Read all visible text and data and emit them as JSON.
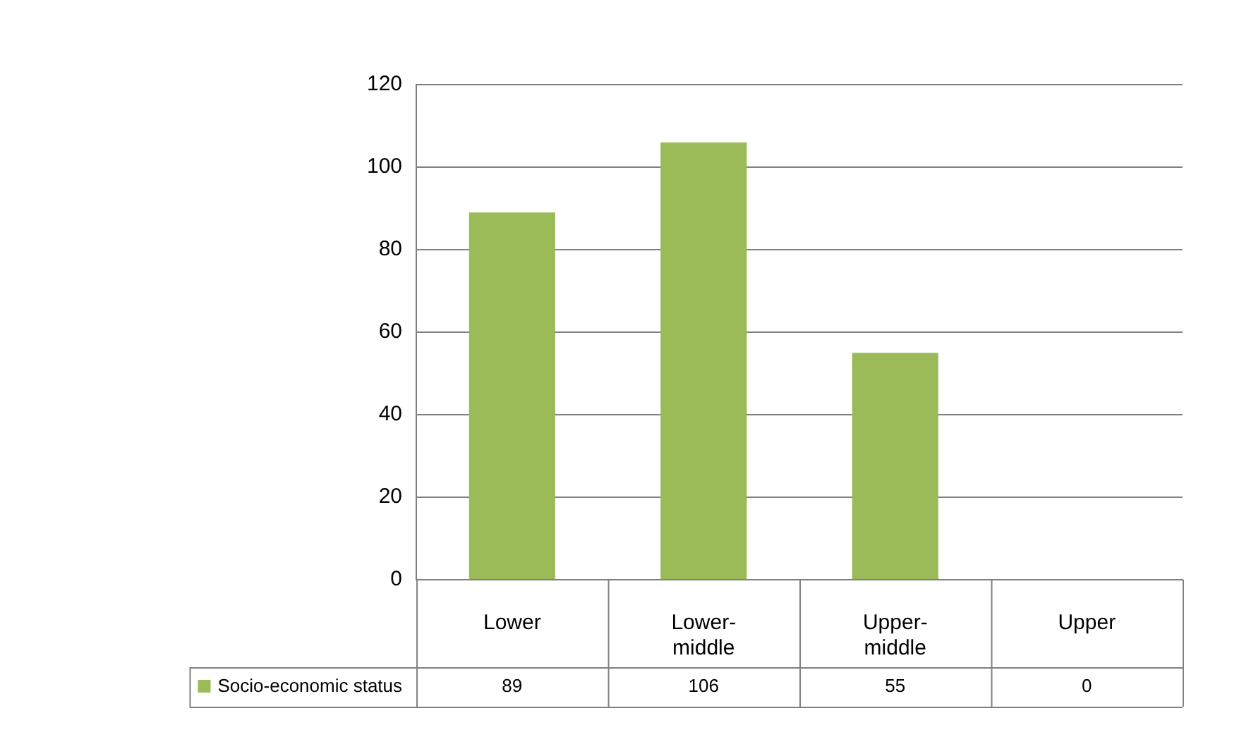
{
  "chart_data": {
    "type": "bar",
    "categories": [
      "Lower",
      "Lower-middle",
      "Upper-middle",
      "Upper"
    ],
    "series": [
      {
        "name": "Socio-economic status",
        "color": "#9bbb59",
        "values": [
          89,
          106,
          55,
          0
        ]
      }
    ],
    "ylim": [
      0,
      120
    ],
    "yticks": [
      0,
      20,
      40,
      60,
      80,
      100,
      120
    ],
    "grid": "y",
    "legend": "bottom left",
    "data_labels": true
  }
}
